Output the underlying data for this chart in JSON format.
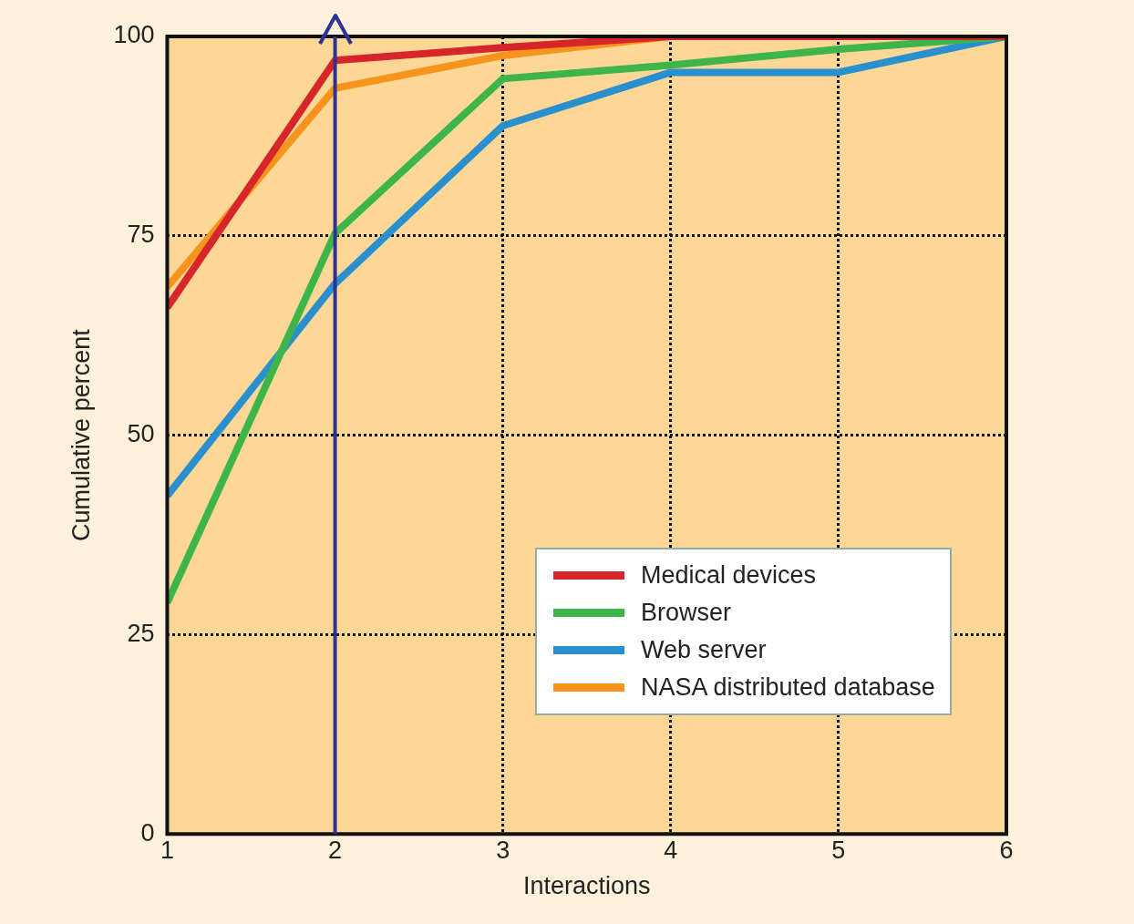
{
  "chart_data": {
    "type": "line",
    "xlabel": "Interactions",
    "ylabel": "Cumulative percent",
    "x": [
      1,
      2,
      3,
      4,
      5,
      6
    ],
    "series": [
      {
        "name": "Medical devices",
        "color": "#d7262b",
        "values": [
          66,
          97,
          98.6,
          100,
          100,
          100
        ]
      },
      {
        "name": "Browser",
        "color": "#3db54a",
        "values": [
          29,
          75.3,
          94.7,
          96.4,
          98.4,
          100
        ]
      },
      {
        "name": "Web server",
        "color": "#2a8fce",
        "values": [
          42.4,
          69,
          88.8,
          95.5,
          95.5,
          100
        ]
      },
      {
        "name": "NASA distributed database",
        "color": "#f7941d",
        "values": [
          68.6,
          93.5,
          97.6,
          100,
          null,
          null
        ]
      }
    ],
    "xlim": [
      1,
      6
    ],
    "xticks": [
      1,
      2,
      3,
      4,
      5,
      6
    ],
    "ylim": [
      0,
      100
    ],
    "yticks": [
      0,
      25,
      50,
      75,
      100
    ],
    "grid": true,
    "legend": "bottom right",
    "marker": "none",
    "line_style": "solid",
    "ref_lines": [
      {
        "axis": "x",
        "value": 2,
        "color": "#2e3192"
      }
    ]
  }
}
